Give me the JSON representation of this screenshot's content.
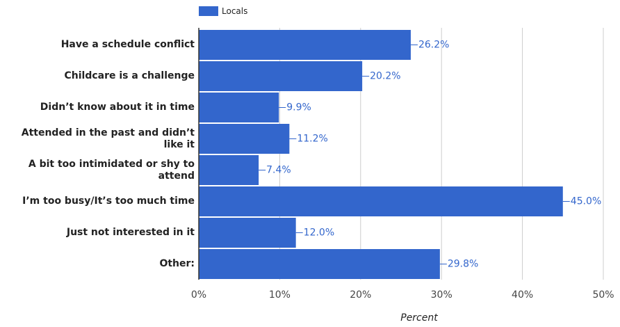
{
  "chart_data": {
    "type": "bar",
    "orientation": "horizontal",
    "categories": [
      "Have a schedule conflict",
      "Childcare is a challenge",
      "Didn’t know about it in time",
      "Attended in the past and didn’t like it",
      "A bit too intimidated or shy to attend",
      "I’m too busy/It’s too much time",
      "Just not interested in it",
      "Other:"
    ],
    "series": [
      {
        "name": "Locals",
        "color": "#3366cc",
        "values": [
          26.2,
          20.2,
          9.9,
          11.2,
          7.4,
          45.0,
          12.0,
          29.8
        ],
        "value_labels": [
          "26.2%",
          "20.2%",
          "9.9%",
          "11.2%",
          "7.4%",
          "45.0%",
          "12.0%",
          "29.8%"
        ]
      }
    ],
    "xlabel": "Percent",
    "xlim": [
      0,
      50
    ],
    "xticks": [
      {
        "value": 0,
        "label": "0%"
      },
      {
        "value": 10,
        "label": "10%"
      },
      {
        "value": 20,
        "label": "20%"
      },
      {
        "value": 30,
        "label": "30%"
      },
      {
        "value": 40,
        "label": "40%"
      },
      {
        "value": 50,
        "label": "50%"
      }
    ],
    "grid": true,
    "legend": "top"
  }
}
